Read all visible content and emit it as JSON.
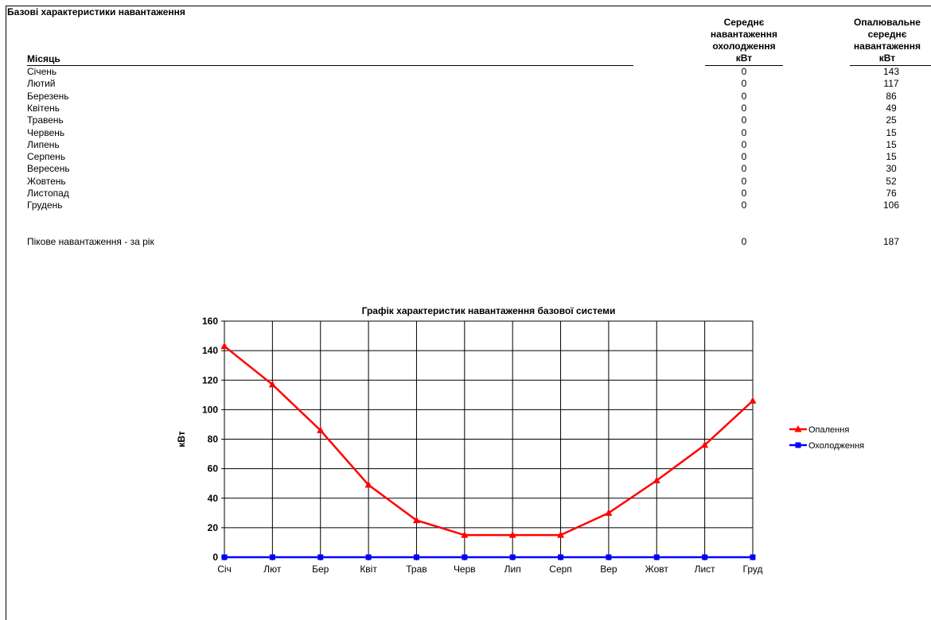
{
  "sheet": {
    "title": "Базові характеристики навантаження",
    "col_month": "Місяць",
    "col_cooling": [
      "Середнє",
      "навантаження",
      "охолодження",
      "кВт"
    ],
    "col_heating": [
      "Опалювальне",
      "середнє",
      "навантаження",
      "кВт"
    ],
    "rows": [
      {
        "month": "Січень",
        "cooling": "0",
        "heating": "143"
      },
      {
        "month": "Лютий",
        "cooling": "0",
        "heating": "117"
      },
      {
        "month": "Березень",
        "cooling": "0",
        "heating": "86"
      },
      {
        "month": "Квітень",
        "cooling": "0",
        "heating": "49"
      },
      {
        "month": "Травень",
        "cooling": "0",
        "heating": "25"
      },
      {
        "month": "Червень",
        "cooling": "0",
        "heating": "15"
      },
      {
        "month": "Липень",
        "cooling": "0",
        "heating": "15"
      },
      {
        "month": "Серпень",
        "cooling": "0",
        "heating": "15"
      },
      {
        "month": "Вересень",
        "cooling": "0",
        "heating": "30"
      },
      {
        "month": "Жовтень",
        "cooling": "0",
        "heating": "52"
      },
      {
        "month": "Листопад",
        "cooling": "0",
        "heating": "76"
      },
      {
        "month": "Грудень",
        "cooling": "0",
        "heating": "106"
      }
    ],
    "peak": {
      "label": "Пікове навантаження - за рік",
      "cooling": "0",
      "heating": "187"
    }
  },
  "chart_data": {
    "type": "line",
    "title": "Графік характеристик навантаження базової системи",
    "xlabel": "",
    "ylabel": "кВт",
    "categories": [
      "Січ",
      "Лют",
      "Бер",
      "Квіт",
      "Трав",
      "Черв",
      "Лип",
      "Серп",
      "Вер",
      "Жовт",
      "Лист",
      "Груд"
    ],
    "ylim": [
      0,
      160
    ],
    "yticks": [
      0,
      20,
      40,
      60,
      80,
      100,
      120,
      140,
      160
    ],
    "grid": true,
    "legend_position": "right",
    "series": [
      {
        "name": "Опалення",
        "color": "#ff0000",
        "marker": "triangle",
        "values": [
          143,
          117,
          86,
          49,
          25,
          15,
          15,
          15,
          30,
          52,
          76,
          106
        ]
      },
      {
        "name": "Охолодження",
        "color": "#0000ff",
        "marker": "square",
        "values": [
          0,
          0,
          0,
          0,
          0,
          0,
          0,
          0,
          0,
          0,
          0,
          0
        ]
      }
    ]
  }
}
